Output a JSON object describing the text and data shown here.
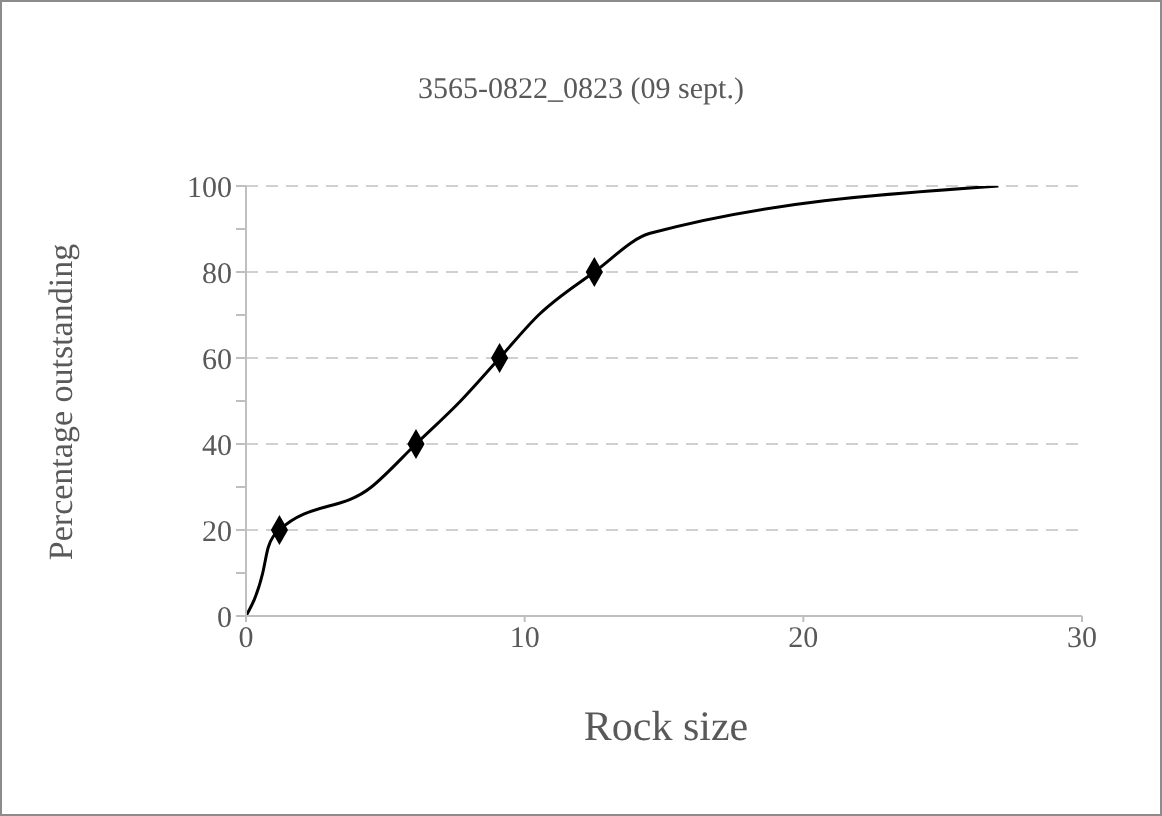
{
  "chart_data": {
    "type": "line",
    "title": "3565-0822_0823 (09 sept.)",
    "xlabel": "Rock size",
    "ylabel": "Percentage outstanding",
    "series": [
      {
        "color": "#000000",
        "marker": "none",
        "x": [
          0,
          0.6,
          0.8,
          1.2,
          4.5,
          6.1,
          7.7,
          9.1,
          10.5,
          12.5,
          14.5,
          27
        ],
        "values": [
          0,
          10,
          16,
          20,
          30,
          40,
          50,
          60,
          70,
          80,
          89,
          100
        ]
      },
      {
        "type": "scatter",
        "color": "#000000",
        "marker": "diamond",
        "x": [
          1.2,
          6.1,
          9.1,
          12.5
        ],
        "values": [
          20,
          40,
          60,
          80
        ]
      }
    ],
    "xlim": [
      0,
      30
    ],
    "xticks": [
      0,
      10,
      20,
      30
    ],
    "ylim": [
      0,
      100
    ],
    "yticks": [
      0,
      {
        "value": 10,
        "label": null
      },
      20,
      {
        "value": 30,
        "label": null
      },
      40,
      {
        "value": 50,
        "label": null
      },
      60,
      {
        "value": 70,
        "label": null
      },
      80,
      {
        "value": 90,
        "label": null
      },
      100
    ],
    "grid": "y",
    "legend": false,
    "line_style": "solid"
  }
}
